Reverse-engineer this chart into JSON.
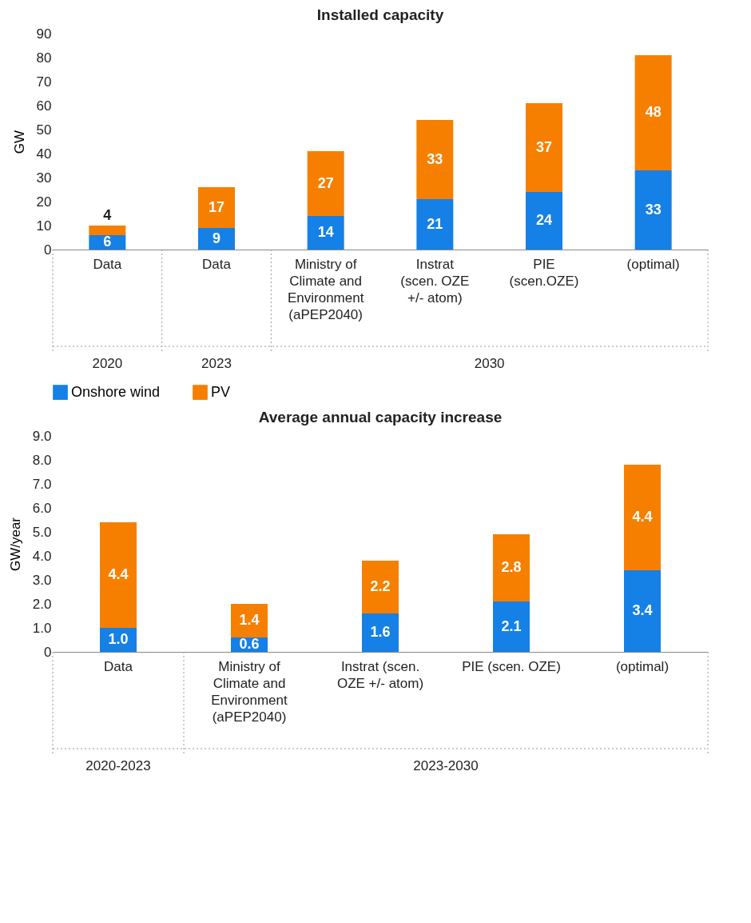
{
  "chart_data": [
    {
      "type": "bar",
      "title": "Installed capacity",
      "ylabel": "GW",
      "stacked": true,
      "data_labels": true,
      "legend": "bottom left",
      "grid": false,
      "categories": [
        "Data",
        "Data",
        "Ministry of Climate and Environment (aPEP2040)",
        "Instrat (scen. OZE +/- atom)",
        "PIE (scen.OZE)",
        "(optimal)"
      ],
      "ylim": [
        0,
        90
      ],
      "yticks": [
        0,
        10,
        20,
        30,
        40,
        50,
        60,
        70,
        80,
        90
      ],
      "annotations": [
        "2020",
        "2023",
        "2030"
      ],
      "series": [
        {
          "name": "Onshore wind",
          "color": "#1580e6",
          "values": [
            6,
            9,
            14,
            21,
            24,
            33
          ]
        },
        {
          "name": "PV",
          "color": "#f77f00",
          "values": [
            4,
            17,
            27,
            33,
            37,
            48
          ]
        }
      ]
    },
    {
      "type": "bar",
      "title": "Average annual capacity increase",
      "ylabel": "GW/year",
      "stacked": true,
      "legend": "bottom left",
      "grid": false,
      "categories": [
        "Data",
        "Ministry of Climate and Environment (aPEP2040)",
        "Instrat (scen. OZE +/- atom)",
        "PIE (scen. OZE)",
        "(optimal)"
      ],
      "ylim": [
        0,
        9
      ],
      "yticks": [
        {
          "value": 0,
          "label": "0"
        },
        {
          "value": 1,
          "label": "1.0"
        },
        {
          "value": 2,
          "label": "2.0"
        },
        {
          "value": 3,
          "label": "3.0"
        },
        {
          "value": 4,
          "label": "4.0"
        },
        {
          "value": 5,
          "label": "5.0"
        },
        {
          "value": 6,
          "label": "6.0"
        },
        {
          "value": 7,
          "label": "7.0"
        },
        {
          "value": 8,
          "label": "8.0"
        },
        {
          "value": 9,
          "label": "9.0"
        }
      ],
      "annotations": [
        "2020-2023",
        "2023-2030"
      ],
      "series": [
        {
          "name": "Onshore wind",
          "color": "#1580e6",
          "values": [
            1.0,
            0.6,
            1.6,
            2.1,
            3.4
          ],
          "value_labels": [
            "1.0",
            "0.6",
            "1.6",
            "2.1",
            "3.4"
          ]
        },
        {
          "name": "PV",
          "color": "#f77f00",
          "values": [
            4.4,
            1.4,
            2.2,
            2.8,
            4.4
          ],
          "value_labels": [
            "4.4",
            "1.4",
            "2.2",
            "2.8",
            "4.4"
          ]
        }
      ]
    }
  ]
}
